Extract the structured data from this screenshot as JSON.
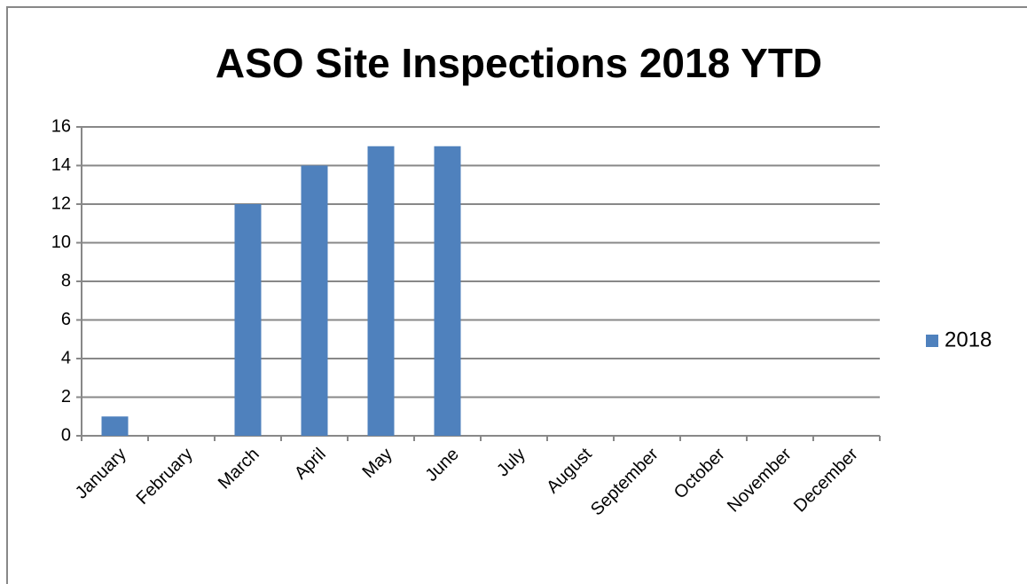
{
  "chart_data": {
    "type": "bar",
    "title": "ASO Site Inspections 2018 YTD",
    "categories": [
      "January",
      "February",
      "March",
      "April",
      "May",
      "June",
      "July",
      "August",
      "September",
      "October",
      "November",
      "December"
    ],
    "series": [
      {
        "name": "2018",
        "color": "#4f81bd",
        "values": [
          1,
          0,
          12,
          14,
          15,
          15,
          null,
          null,
          null,
          null,
          null,
          null
        ]
      }
    ],
    "ylim": [
      0,
      16
    ],
    "yticks": [
      0,
      2,
      4,
      6,
      8,
      10,
      12,
      14,
      16
    ],
    "grid": true,
    "legend": "right"
  }
}
